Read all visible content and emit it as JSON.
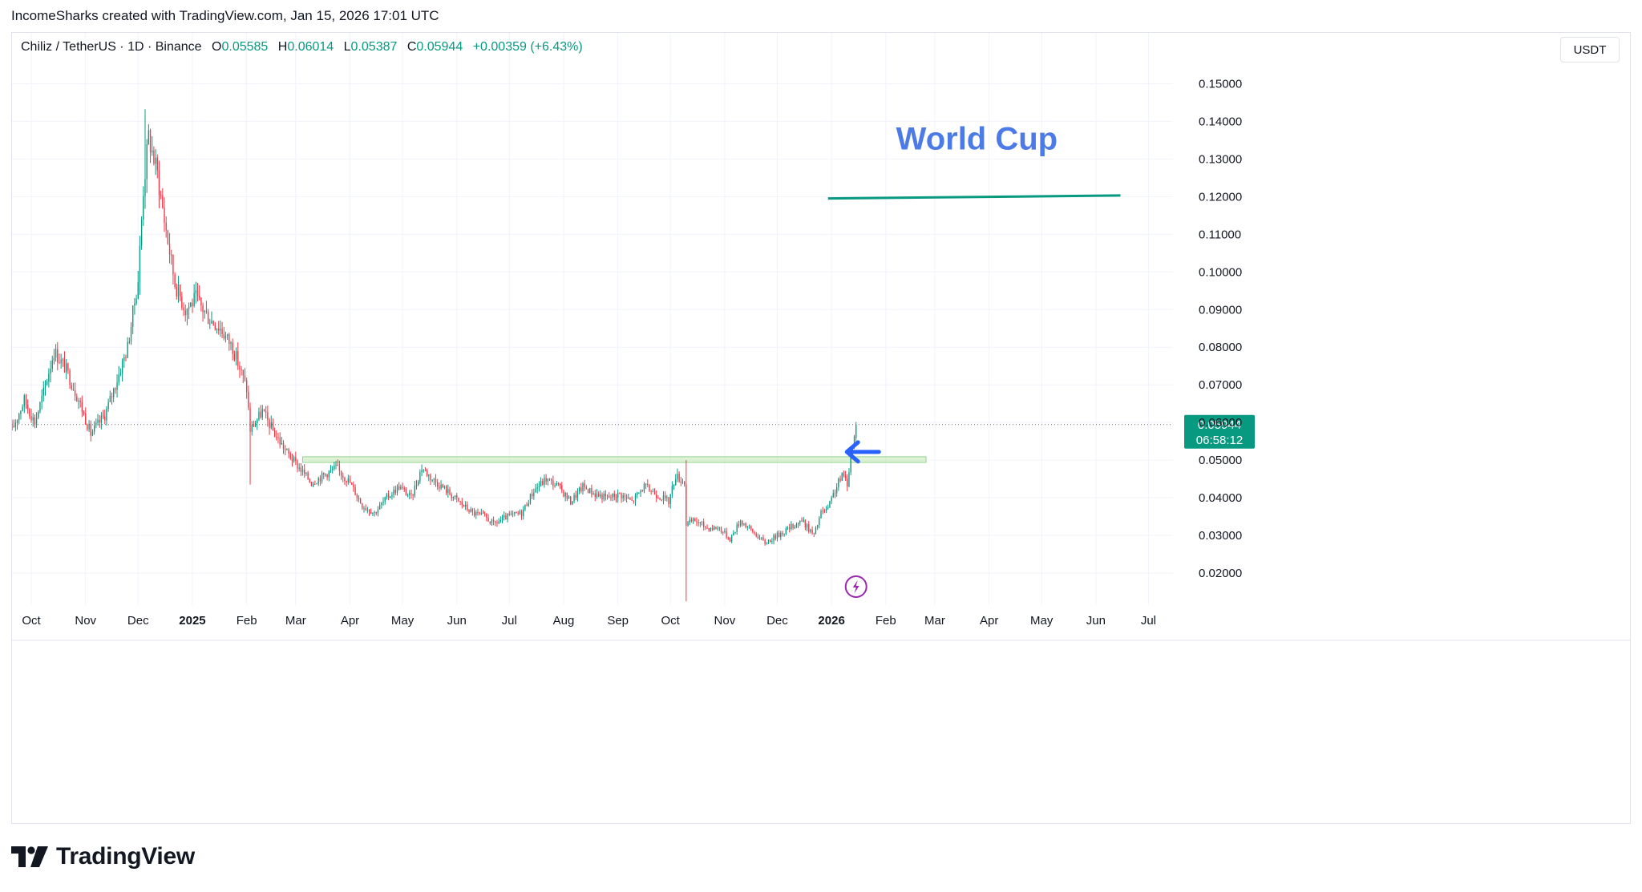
{
  "header": {
    "attribution": "IncomeSharks created with TradingView.com, Jan 15, 2026 17:01 UTC"
  },
  "legend": {
    "symbol": "Chiliz / TetherUS · 1D · Binance",
    "open_label": "O",
    "open": "0.05585",
    "high_label": "H",
    "high": "0.06014",
    "low_label": "L",
    "low": "0.05387",
    "close_label": "C",
    "close": "0.05944",
    "change": "+0.00359 (+6.43%)"
  },
  "currency_button": "USDT",
  "last_price": {
    "price": "0.05944",
    "countdown": "06:58:12"
  },
  "annotation": {
    "text": "World Cup"
  },
  "brand": {
    "name": "TradingView"
  },
  "colors": {
    "up": "#089981",
    "down": "#f23645",
    "annotation_text": "#4c7be8",
    "target_line": "#089981",
    "zone": "#b7e5a6",
    "arrow": "#2962ff",
    "flash": "#9c27b0"
  },
  "chart_data": {
    "type": "candlestick",
    "x_axis": {
      "tick_labels": [
        "Oct",
        "Nov",
        "Dec",
        "2025",
        "Feb",
        "Mar",
        "Apr",
        "May",
        "Jun",
        "Jul",
        "Aug",
        "Sep",
        "Oct",
        "Nov",
        "Dec",
        "2026",
        "Feb",
        "Mar",
        "Apr",
        "May",
        "Jun",
        "Jul"
      ],
      "tick_dates": [
        "2024-10-01",
        "2024-11-01",
        "2024-12-01",
        "2025-01-01",
        "2025-02-01",
        "2025-03-01",
        "2025-04-01",
        "2025-05-01",
        "2025-06-01",
        "2025-07-01",
        "2025-08-01",
        "2025-09-01",
        "2025-10-01",
        "2025-11-01",
        "2025-12-01",
        "2026-01-01",
        "2026-02-01",
        "2026-03-01",
        "2026-04-01",
        "2026-05-01",
        "2026-06-01",
        "2026-07-01"
      ],
      "bold_labels": [
        "2025",
        "2026"
      ],
      "range": [
        "2024-09-20",
        "2026-07-15"
      ]
    },
    "y_axis": {
      "tick_labels": [
        "0.02000",
        "0.03000",
        "0.04000",
        "0.05000",
        "0.06000",
        "0.07000",
        "0.08000",
        "0.09000",
        "0.10000",
        "0.11000",
        "0.12000",
        "0.13000",
        "0.14000",
        "0.15000"
      ],
      "ticks": [
        0.02,
        0.03,
        0.04,
        0.05,
        0.06,
        0.07,
        0.08,
        0.09,
        0.1,
        0.11,
        0.12,
        0.13,
        0.14,
        0.15
      ],
      "range": [
        0.0115,
        0.1635
      ],
      "position": "right"
    },
    "grid": true,
    "price_path": [
      [
        "2024-09-20",
        0.058
      ],
      [
        "2024-09-27",
        0.066
      ],
      [
        "2024-10-03",
        0.06
      ],
      [
        "2024-10-08",
        0.068
      ],
      [
        "2024-10-14",
        0.079
      ],
      [
        "2024-10-21",
        0.074
      ],
      [
        "2024-10-28",
        0.066
      ],
      [
        "2024-11-04",
        0.057
      ],
      [
        "2024-11-12",
        0.062
      ],
      [
        "2024-11-18",
        0.07
      ],
      [
        "2024-11-25",
        0.08
      ],
      [
        "2024-12-01",
        0.098
      ],
      [
        "2024-12-04",
        0.122
      ],
      [
        "2024-12-07",
        0.136
      ],
      [
        "2024-12-12",
        0.126
      ],
      [
        "2024-12-16",
        0.114
      ],
      [
        "2024-12-22",
        0.097
      ],
      [
        "2024-12-28",
        0.09
      ],
      [
        "2025-01-03",
        0.093
      ],
      [
        "2025-01-10",
        0.088
      ],
      [
        "2025-01-17",
        0.085
      ],
      [
        "2025-01-24",
        0.08
      ],
      [
        "2025-02-01",
        0.069
      ],
      [
        "2025-02-03",
        0.058
      ],
      [
        "2025-02-10",
        0.063
      ],
      [
        "2025-02-17",
        0.057
      ],
      [
        "2025-02-24",
        0.052
      ],
      [
        "2025-03-03",
        0.048
      ],
      [
        "2025-03-10",
        0.044
      ],
      [
        "2025-03-17",
        0.046
      ],
      [
        "2025-03-24",
        0.048
      ],
      [
        "2025-04-01",
        0.044
      ],
      [
        "2025-04-08",
        0.038
      ],
      [
        "2025-04-15",
        0.036
      ],
      [
        "2025-04-22",
        0.04
      ],
      [
        "2025-04-29",
        0.043
      ],
      [
        "2025-05-06",
        0.04
      ],
      [
        "2025-05-12",
        0.048
      ],
      [
        "2025-05-18",
        0.045
      ],
      [
        "2025-05-26",
        0.042
      ],
      [
        "2025-06-02",
        0.039
      ],
      [
        "2025-06-10",
        0.036
      ],
      [
        "2025-06-17",
        0.035
      ],
      [
        "2025-06-22",
        0.033
      ],
      [
        "2025-06-30",
        0.035
      ],
      [
        "2025-07-08",
        0.036
      ],
      [
        "2025-07-15",
        0.042
      ],
      [
        "2025-07-22",
        0.045
      ],
      [
        "2025-07-29",
        0.043
      ],
      [
        "2025-08-05",
        0.039
      ],
      [
        "2025-08-12",
        0.043
      ],
      [
        "2025-08-19",
        0.041
      ],
      [
        "2025-08-26",
        0.04
      ],
      [
        "2025-09-02",
        0.041
      ],
      [
        "2025-09-09",
        0.039
      ],
      [
        "2025-09-16",
        0.043
      ],
      [
        "2025-09-23",
        0.041
      ],
      [
        "2025-09-30",
        0.039
      ],
      [
        "2025-10-04",
        0.046
      ],
      [
        "2025-10-09",
        0.044
      ],
      [
        "2025-10-10",
        0.033
      ],
      [
        "2025-10-15",
        0.034
      ],
      [
        "2025-10-22",
        0.032
      ],
      [
        "2025-10-29",
        0.032
      ],
      [
        "2025-11-04",
        0.029
      ],
      [
        "2025-11-10",
        0.034
      ],
      [
        "2025-11-17",
        0.031
      ],
      [
        "2025-11-24",
        0.028
      ],
      [
        "2025-12-01",
        0.03
      ],
      [
        "2025-12-08",
        0.032
      ],
      [
        "2025-12-15",
        0.034
      ],
      [
        "2025-12-22",
        0.03
      ],
      [
        "2025-12-26",
        0.036
      ],
      [
        "2025-12-30",
        0.037
      ],
      [
        "2026-01-03",
        0.042
      ],
      [
        "2026-01-07",
        0.046
      ],
      [
        "2026-01-10",
        0.044
      ],
      [
        "2026-01-12",
        0.051
      ],
      [
        "2026-01-14",
        0.056
      ],
      [
        "2026-01-15",
        0.05944
      ]
    ],
    "notable_wicks": [
      {
        "date": "2024-12-05",
        "high": 0.1432
      },
      {
        "date": "2025-02-03",
        "low": 0.0435
      },
      {
        "date": "2025-10-10",
        "low": 0.0125,
        "high": 0.05
      }
    ],
    "support_zone": {
      "from": "2025-03-05",
      "to": "2026-02-24",
      "low": 0.0494,
      "high": 0.0509
    },
    "target_line": {
      "from": "2025-12-30",
      "to": "2026-06-15",
      "value": 0.1195,
      "value_end": 0.1203
    },
    "annotation_text_at": {
      "date": "2026-03-25",
      "value": 0.1325
    },
    "arrow_at": {
      "date": "2026-01-18",
      "value": 0.0522,
      "direction": "left"
    },
    "current_price_line": 0.05944,
    "flash_icon_at": {
      "date": "2026-01-15",
      "value": 0.0164
    }
  }
}
